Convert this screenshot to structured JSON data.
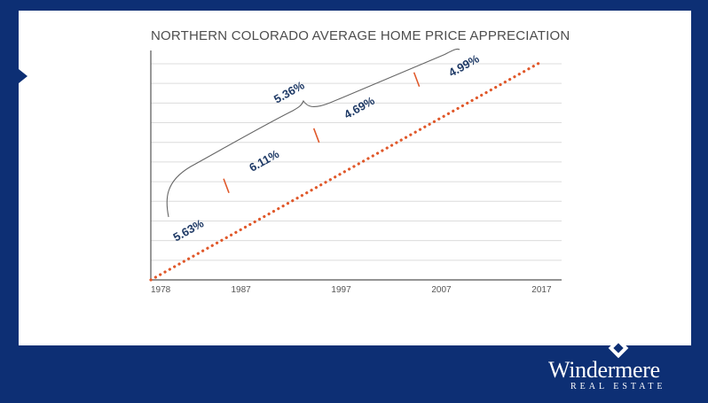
{
  "slide": {
    "title": "NORTHERN COLORADO AVERAGE HOME PRICE APPRECIATION"
  },
  "logo": {
    "name": "Windermere",
    "subtitle": "REAL ESTATE"
  },
  "colors": {
    "frame": "#0d2f74",
    "trend_line": "#e0582a",
    "period_marker": "#e0582a",
    "label_text": "#1f3a66",
    "gridline": "#dcdcdc",
    "axis": "#555555"
  },
  "chart_data": {
    "type": "line",
    "title": "NORTHERN COLORADO AVERAGE HOME PRICE APPRECIATION",
    "xlabel": "",
    "ylabel": "",
    "x_ticks": [
      "1978",
      "1987",
      "1997",
      "2007",
      "2017"
    ],
    "x_tick_values": [
      1978,
      1987,
      1997,
      2007,
      2017
    ],
    "xlim": [
      1978,
      2019
    ],
    "grid": true,
    "legend": "none",
    "series": [
      {
        "x": [
          1978,
          2017
        ],
        "y": [
          0,
          100
        ],
        "style": "dotted"
      }
    ],
    "period_markers": [
      1985,
      1994,
      2004
    ],
    "annotations": [
      {
        "text": "5.63%",
        "period": [
          1978,
          1985
        ]
      },
      {
        "text": "6.11%",
        "period": [
          1985,
          1994
        ]
      },
      {
        "text": "4.69%",
        "period": [
          1994,
          2004
        ]
      },
      {
        "text": "4.99%",
        "period": [
          2004,
          2017
        ]
      },
      {
        "text": "5.36%",
        "period": [
          1978,
          2010
        ],
        "bracket": true
      }
    ]
  }
}
